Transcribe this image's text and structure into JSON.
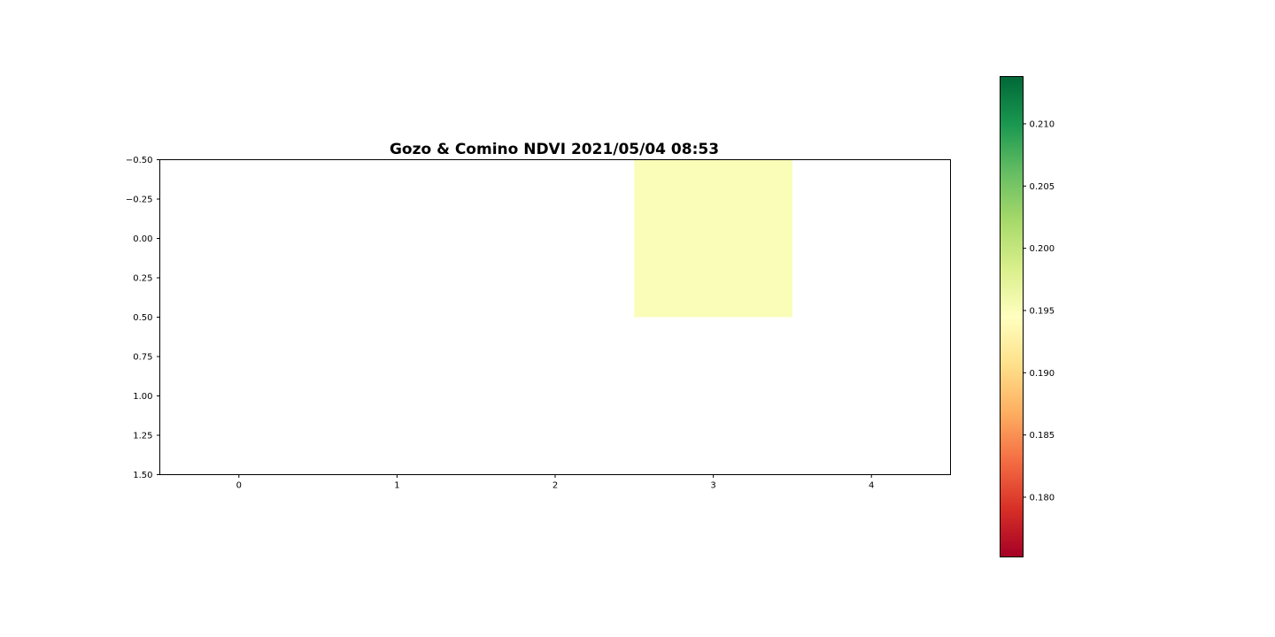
{
  "chart_data": {
    "type": "heatmap",
    "title": "Gozo & Comino NDVI 2021/05/04 08:53",
    "xlabel": "",
    "ylabel": "",
    "xlim": [
      -0.5,
      4.5
    ],
    "ylim": [
      1.5,
      -0.5
    ],
    "x_ticks": [
      0,
      1,
      2,
      3,
      4
    ],
    "x_tick_labels": [
      "0",
      "1",
      "2",
      "3",
      "4"
    ],
    "y_ticks": [
      -0.5,
      -0.25,
      0.0,
      0.25,
      0.5,
      0.75,
      1.0,
      1.25,
      1.5
    ],
    "y_tick_labels": [
      "−0.50",
      "−0.25",
      "0.00",
      "0.25",
      "0.50",
      "0.75",
      "1.00",
      "1.25",
      "1.50"
    ],
    "cells": [
      {
        "row": 0,
        "col": 3,
        "value": 0.195
      }
    ],
    "grid": false,
    "colorbar": {
      "colormap": "RdYlGn",
      "range": [
        0.1752,
        0.2138
      ],
      "ticks": [
        0.18,
        0.185,
        0.19,
        0.195,
        0.2,
        0.205,
        0.21
      ],
      "tick_labels": [
        "0.180",
        "0.185",
        "0.190",
        "0.195",
        "0.200",
        "0.205",
        "0.210"
      ],
      "placement": "right"
    },
    "colors": [
      "#a50026",
      "#d73027",
      "#f46d43",
      "#fdae61",
      "#fee08b",
      "#ffffbf",
      "#d9ef8b",
      "#a6d96a",
      "#66bd63",
      "#1a9850",
      "#006837"
    ]
  }
}
